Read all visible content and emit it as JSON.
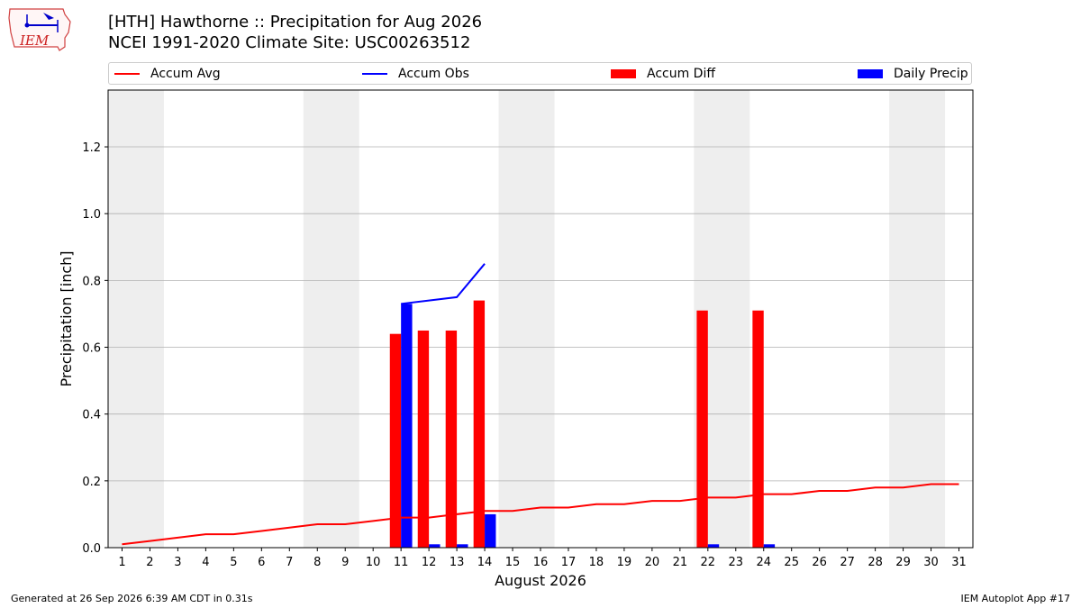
{
  "header": {
    "logo_text": "IEM",
    "title_line1": "[HTH] Hawthorne :: Precipitation for Aug 2026",
    "title_line2": "NCEI 1991-2020 Climate Site: USC00263512"
  },
  "legend": {
    "accum_avg": "Accum Avg",
    "accum_obs": "Accum Obs",
    "accum_diff": "Accum Diff",
    "daily_precip": "Daily Precip"
  },
  "colors": {
    "avg": "#ff0000",
    "obs": "#0000ff",
    "diff": "#ff0000",
    "daily": "#0000ff",
    "weekend_band": "#eeeeee",
    "grid": "#b0b0b0"
  },
  "footer": {
    "generated": "Generated at 26 Sep 2026 6:39 AM CDT in 0.31s",
    "app": "IEM Autoplot App #17"
  },
  "chart_data": {
    "type": "bar",
    "xlabel": "August 2026",
    "ylabel": "Precipitation [inch]",
    "xlim": [
      0.5,
      31.5
    ],
    "ylim": [
      0,
      1.37
    ],
    "yticks": [
      0.0,
      0.2,
      0.4,
      0.6,
      0.8,
      1.0,
      1.2
    ],
    "ytick_labels": [
      "0.0",
      "0.2",
      "0.4",
      "0.6",
      "0.8",
      "1.0",
      "1.2"
    ],
    "days": [
      1,
      2,
      3,
      4,
      5,
      6,
      7,
      8,
      9,
      10,
      11,
      12,
      13,
      14,
      15,
      16,
      17,
      18,
      19,
      20,
      21,
      22,
      23,
      24,
      25,
      26,
      27,
      28,
      29,
      30,
      31
    ],
    "weekend_pairs": [
      [
        1,
        2
      ],
      [
        8,
        9
      ],
      [
        15,
        16
      ],
      [
        22,
        23
      ],
      [
        29,
        30
      ]
    ],
    "grid": "horizontal",
    "legend_position": "top",
    "series": [
      {
        "name": "Accum Avg",
        "kind": "line",
        "x": [
          1,
          2,
          3,
          4,
          5,
          6,
          7,
          8,
          9,
          10,
          11,
          12,
          13,
          14,
          15,
          16,
          17,
          18,
          19,
          20,
          21,
          22,
          23,
          24,
          25,
          26,
          27,
          28,
          29,
          30,
          31
        ],
        "values": [
          0.01,
          0.02,
          0.03,
          0.04,
          0.04,
          0.05,
          0.06,
          0.07,
          0.07,
          0.08,
          0.09,
          0.09,
          0.1,
          0.11,
          0.11,
          0.12,
          0.12,
          0.13,
          0.13,
          0.14,
          0.14,
          0.15,
          0.15,
          0.16,
          0.16,
          0.17,
          0.17,
          0.18,
          0.18,
          0.19,
          0.19
        ]
      },
      {
        "name": "Accum Obs",
        "kind": "line",
        "x": [
          11,
          12,
          13,
          14
        ],
        "values": [
          0.73,
          0.74,
          0.75,
          0.85
        ]
      },
      {
        "name": "Accum Diff",
        "kind": "bar",
        "x": [
          11,
          12,
          13,
          14,
          22,
          24
        ],
        "values": [
          0.64,
          0.65,
          0.65,
          0.74,
          0.71,
          0.71
        ]
      },
      {
        "name": "Daily Precip",
        "kind": "bar",
        "x": [
          11,
          12,
          13,
          14,
          22,
          24
        ],
        "values": [
          0.73,
          0.01,
          0.01,
          0.1,
          0.01,
          0.01
        ]
      }
    ]
  }
}
